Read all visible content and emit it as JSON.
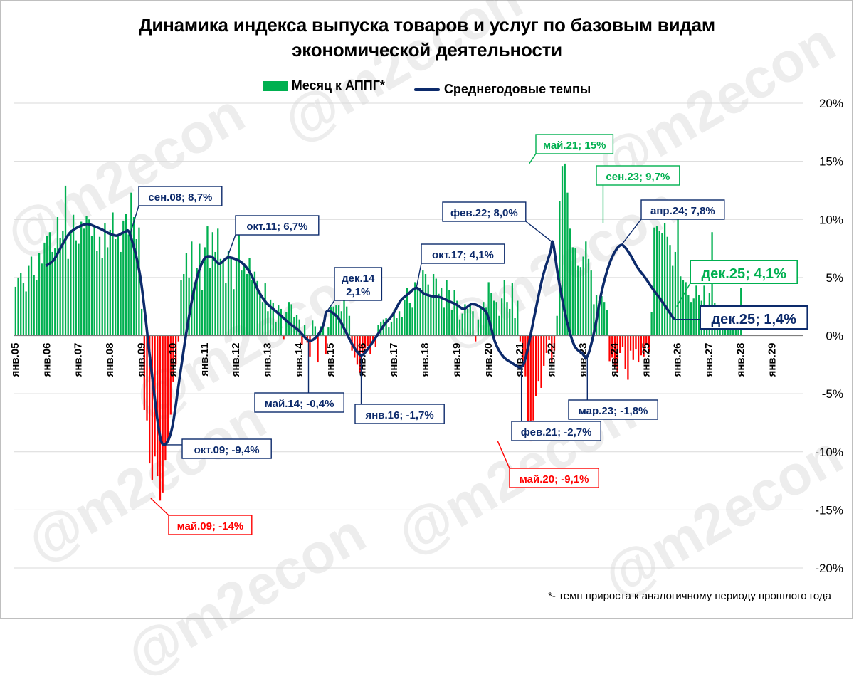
{
  "title_line1": "Динамика индекса выпуска товаров и услуг по базовым видам",
  "title_line2": "экономической деятельности",
  "legend": {
    "bars": "Месяц к АППГ*",
    "line": "Среднегодовые темпы"
  },
  "footnote": "*- темп прироста к аналогичному периоду прошлого года",
  "watermark": "@m2econ",
  "colors": {
    "positive_bar": "#00b050",
    "negative_bar": "#ff0000",
    "line": "#0c2a6b",
    "grid": "#d9d9d9"
  },
  "chart_data": {
    "type": "bar+line",
    "yaxis_ticks": [
      "20%",
      "15%",
      "10%",
      "5%",
      "0%",
      "-5%",
      "-10%",
      "-15%",
      "-20%"
    ],
    "ylim": [
      -20,
      20
    ],
    "xaxis_ticks": [
      "янв.05",
      "янв.06",
      "янв.07",
      "янв.08",
      "янв.09",
      "янв.10",
      "янв.11",
      "янв.12",
      "янв.13",
      "янв.14",
      "янв.15",
      "янв.16",
      "янв.17",
      "янв.18",
      "янв.19",
      "янв.20",
      "янв.21",
      "янв.22",
      "янв.23",
      "янв.24",
      "янв.25",
      "янв.26",
      "янв.27",
      "янв.28",
      "янв.29"
    ],
    "series": [
      {
        "name": "Месяц к АППГ*",
        "kind": "bar",
        "yearly": [
          [
            4.2,
            5.0,
            5.4,
            4.5,
            3.8,
            6.0,
            6.8,
            5.2,
            4.8,
            7.1,
            6.2,
            8.0
          ],
          [
            8.6,
            8.9,
            7.2,
            7.5,
            10.2,
            8.4,
            9.0,
            12.9,
            6.6,
            9.1,
            10.4,
            8.2
          ],
          [
            7.9,
            9.8,
            9.2,
            10.3,
            10.0,
            8.6,
            9.4,
            7.3,
            8.5,
            6.7,
            9.7,
            7.6
          ],
          [
            9.1,
            10.6,
            8.3,
            8.7,
            7.2,
            9.9,
            10.5,
            8.7,
            12.3,
            10.2,
            8.3,
            9.3
          ],
          [
            2.3,
            -6.4,
            -7.3,
            -11.0,
            -12.4,
            -10.4,
            -12.1,
            -14.2,
            -13.5,
            -10.7,
            -8.9,
            -6.8
          ],
          [
            -4.0,
            -2.5,
            -0.5,
            4.8,
            5.3,
            7.1,
            5.0,
            8.1,
            4.6,
            5.8,
            7.9,
            3.9
          ],
          [
            7.6,
            9.4,
            5.8,
            8.9,
            7.2,
            9.2,
            6.6,
            6.4,
            4.5,
            7.3,
            6.8,
            4.0
          ],
          [
            6.7,
            9.0,
            5.6,
            6.2,
            5.3,
            6.7,
            4.8,
            5.5,
            4.7,
            3.8,
            2.9,
            4.5
          ],
          [
            2.1,
            3.1,
            2.8,
            1.2,
            2.6,
            2.3,
            -0.3,
            2.0,
            2.9,
            2.7,
            1.6,
            1.8
          ],
          [
            1.4,
            -0.8,
            0.9,
            -0.6,
            -1.8,
            1.3,
            0.8,
            -2.3,
            0.8,
            1.1,
            -1.6,
            0.7
          ],
          [
            2.5,
            2.5,
            2.6,
            2.6,
            2.1,
            4.1,
            2.5,
            1.7,
            -1.3,
            -1.9,
            -2.5,
            -3.2
          ],
          [
            -1.5,
            -1.1,
            -0.9,
            -1.6,
            -0.5,
            -1.0,
            0.9,
            1.2,
            1.4,
            1.5,
            0.7,
            1.2
          ],
          [
            2.2,
            1.5,
            2.1,
            1.6,
            3.1,
            4.1,
            2.8,
            2.4,
            4.6,
            4.2,
            4.1,
            5.6
          ],
          [
            5.3,
            4.4,
            3.5,
            5.3,
            4.9,
            3.6,
            4.1,
            2.4,
            4.8,
            3.9,
            2.2,
            3.9
          ],
          [
            3.0,
            1.4,
            1.9,
            2.7,
            2.3,
            2.6,
            2.1,
            -0.5,
            1.4,
            2.5,
            2.9,
            2.4
          ],
          [
            4.6,
            3.7,
            3.0,
            2.9,
            1.7,
            3.2,
            4.8,
            2.9,
            2.3,
            4.5,
            1.5,
            3.0
          ],
          [
            -0.5,
            -2.2,
            -3.5,
            -7.9,
            -9.1,
            -7.3,
            -5.2,
            -3.9,
            -4.5,
            -2.6,
            -1.5,
            -0.4
          ],
          [
            -2.3,
            -1.3,
            1.7,
            11.6,
            14.6,
            14.8,
            12.3,
            9.2,
            7.6,
            7.5,
            6.0,
            5.9
          ],
          [
            6.8,
            8.1,
            6.6,
            5.6,
            2.7,
            3.5,
            3.0,
            3.4,
            2.9,
            2.2,
            -2.2,
            -1.9
          ],
          [
            -2.7,
            -3.2,
            -1.5,
            -1.0,
            -2.9,
            -3.8,
            -1.3,
            -2.1,
            -1.2,
            -2.3,
            -1.7,
            -1.8
          ],
          [
            -0.7,
            -1.4,
            2.0,
            9.3,
            9.4,
            9.0,
            8.8,
            9.7,
            8.5,
            7.8,
            6.0,
            7.2
          ],
          [
            10.0,
            5.1,
            4.8,
            4.6,
            3.5,
            2.9,
            3.2,
            4.3,
            3.5,
            3.0,
            4.3,
            1.6
          ],
          [
            3.7,
            8.9,
            2.8,
            1.6,
            1.9,
            1.4,
            1.1,
            0.9,
            1.8,
            0.8,
            1.5,
            2.0
          ],
          [
            4.1
          ]
        ]
      },
      {
        "name": "Среднегодовые темпы",
        "kind": "line",
        "points": [
          [
            2006.0,
            6.0
          ],
          [
            2006.25,
            6.5
          ],
          [
            2006.5,
            7.7
          ],
          [
            2006.75,
            8.8
          ],
          [
            2007.0,
            9.3
          ],
          [
            2007.3,
            9.6
          ],
          [
            2007.55,
            9.4
          ],
          [
            2007.8,
            9.1
          ],
          [
            2008.0,
            8.8
          ],
          [
            2008.25,
            8.6
          ],
          [
            2008.5,
            8.9
          ],
          [
            2008.67,
            8.7
          ],
          [
            2009.0,
            5.0
          ],
          [
            2009.33,
            -2.5
          ],
          [
            2009.58,
            -8.0
          ],
          [
            2009.75,
            -9.4
          ],
          [
            2010.0,
            -8.0
          ],
          [
            2010.25,
            -3.5
          ],
          [
            2010.5,
            1.0
          ],
          [
            2010.75,
            4.5
          ],
          [
            2011.0,
            6.5
          ],
          [
            2011.25,
            6.8
          ],
          [
            2011.5,
            6.2
          ],
          [
            2011.75,
            6.7
          ],
          [
            2012.0,
            6.6
          ],
          [
            2012.25,
            6.2
          ],
          [
            2012.5,
            5.3
          ],
          [
            2012.75,
            3.8
          ],
          [
            2013.0,
            2.8
          ],
          [
            2013.25,
            2.2
          ],
          [
            2013.5,
            1.6
          ],
          [
            2013.75,
            1.0
          ],
          [
            2014.0,
            0.5
          ],
          [
            2014.33,
            -0.4
          ],
          [
            2014.58,
            -0.1
          ],
          [
            2014.8,
            0.9
          ],
          [
            2014.92,
            2.1
          ],
          [
            2015.25,
            1.6
          ],
          [
            2015.5,
            0.4
          ],
          [
            2015.75,
            -0.9
          ],
          [
            2016.0,
            -1.7
          ],
          [
            2016.25,
            -1.0
          ],
          [
            2016.5,
            0.0
          ],
          [
            2016.75,
            1.0
          ],
          [
            2017.0,
            1.8
          ],
          [
            2017.25,
            3.0
          ],
          [
            2017.5,
            3.6
          ],
          [
            2017.75,
            4.1
          ],
          [
            2018.0,
            3.6
          ],
          [
            2018.25,
            3.4
          ],
          [
            2018.5,
            3.3
          ],
          [
            2018.75,
            3.0
          ],
          [
            2019.0,
            2.7
          ],
          [
            2019.25,
            2.3
          ],
          [
            2019.5,
            2.7
          ],
          [
            2019.75,
            2.5
          ],
          [
            2020.0,
            1.8
          ],
          [
            2020.25,
            -0.6
          ],
          [
            2020.5,
            -1.8
          ],
          [
            2020.75,
            -2.3
          ],
          [
            2021.08,
            -2.7
          ],
          [
            2021.25,
            -1.5
          ],
          [
            2021.5,
            1.8
          ],
          [
            2021.75,
            5.0
          ],
          [
            2022.0,
            7.2
          ],
          [
            2022.08,
            8.0
          ],
          [
            2022.25,
            5.0
          ],
          [
            2022.5,
            1.5
          ],
          [
            2022.75,
            -0.8
          ],
          [
            2023.0,
            -1.5
          ],
          [
            2023.17,
            -1.8
          ],
          [
            2023.4,
            0.5
          ],
          [
            2023.6,
            3.5
          ],
          [
            2023.8,
            5.6
          ],
          [
            2024.0,
            7.0
          ],
          [
            2024.25,
            7.8
          ],
          [
            2024.5,
            7.1
          ],
          [
            2024.75,
            5.9
          ],
          [
            2025.0,
            5.0
          ],
          [
            2025.25,
            4.0
          ],
          [
            2025.5,
            3.1
          ],
          [
            2025.75,
            2.1
          ],
          [
            2025.92,
            1.4
          ]
        ]
      }
    ],
    "annotations": [
      {
        "text": "сен.08; 8,7%",
        "x": 2008.67,
        "y": 8.7,
        "color": "line"
      },
      {
        "text": "окт.09; -9,4%",
        "x": 2009.75,
        "y": -9.4,
        "color": "line"
      },
      {
        "text": "май.09; -14%",
        "x": 2009.33,
        "y": -14.0,
        "color": "negative"
      },
      {
        "text": "окт.11; 6,7%",
        "x": 2011.75,
        "y": 6.7,
        "color": "line"
      },
      {
        "text": "май.14; -0,4%",
        "x": 2014.33,
        "y": -0.4,
        "color": "line"
      },
      {
        "text": "дек.14",
        "text2": "2,1%",
        "x": 2014.92,
        "y": 2.1,
        "color": "line"
      },
      {
        "text": "янв.16; -1,7%",
        "x": 2016.0,
        "y": -1.7,
        "color": "line"
      },
      {
        "text": "окт.17; 4,1%",
        "x": 2017.75,
        "y": 4.1,
        "color": "line"
      },
      {
        "text": "фев.22; 8,0%",
        "x": 2022.08,
        "y": 8.0,
        "color": "line"
      },
      {
        "text": "май.20; -9,1%",
        "x": 2020.33,
        "y": -9.1,
        "color": "negative"
      },
      {
        "text": "фев.21; -2,7%",
        "x": 2021.08,
        "y": -2.7,
        "color": "line"
      },
      {
        "text": "май.21; 15%",
        "x": 2021.33,
        "y": 14.8,
        "color": "positive"
      },
      {
        "text": "сен.23; 9,7%",
        "x": 2023.67,
        "y": 9.7,
        "color": "positive"
      },
      {
        "text": "апр.24; 7,8%",
        "x": 2024.25,
        "y": 7.8,
        "color": "line"
      },
      {
        "text": "мар.23; -1,8%",
        "x": 2023.17,
        "y": -1.8,
        "color": "line"
      },
      {
        "text": "дек.25; 4,1%",
        "x": 2026.0,
        "y": 2.5,
        "color": "positive",
        "big": true
      },
      {
        "text": "дек.25; 1,4%",
        "x": 2025.92,
        "y": 1.4,
        "color": "line",
        "big": true
      }
    ]
  }
}
